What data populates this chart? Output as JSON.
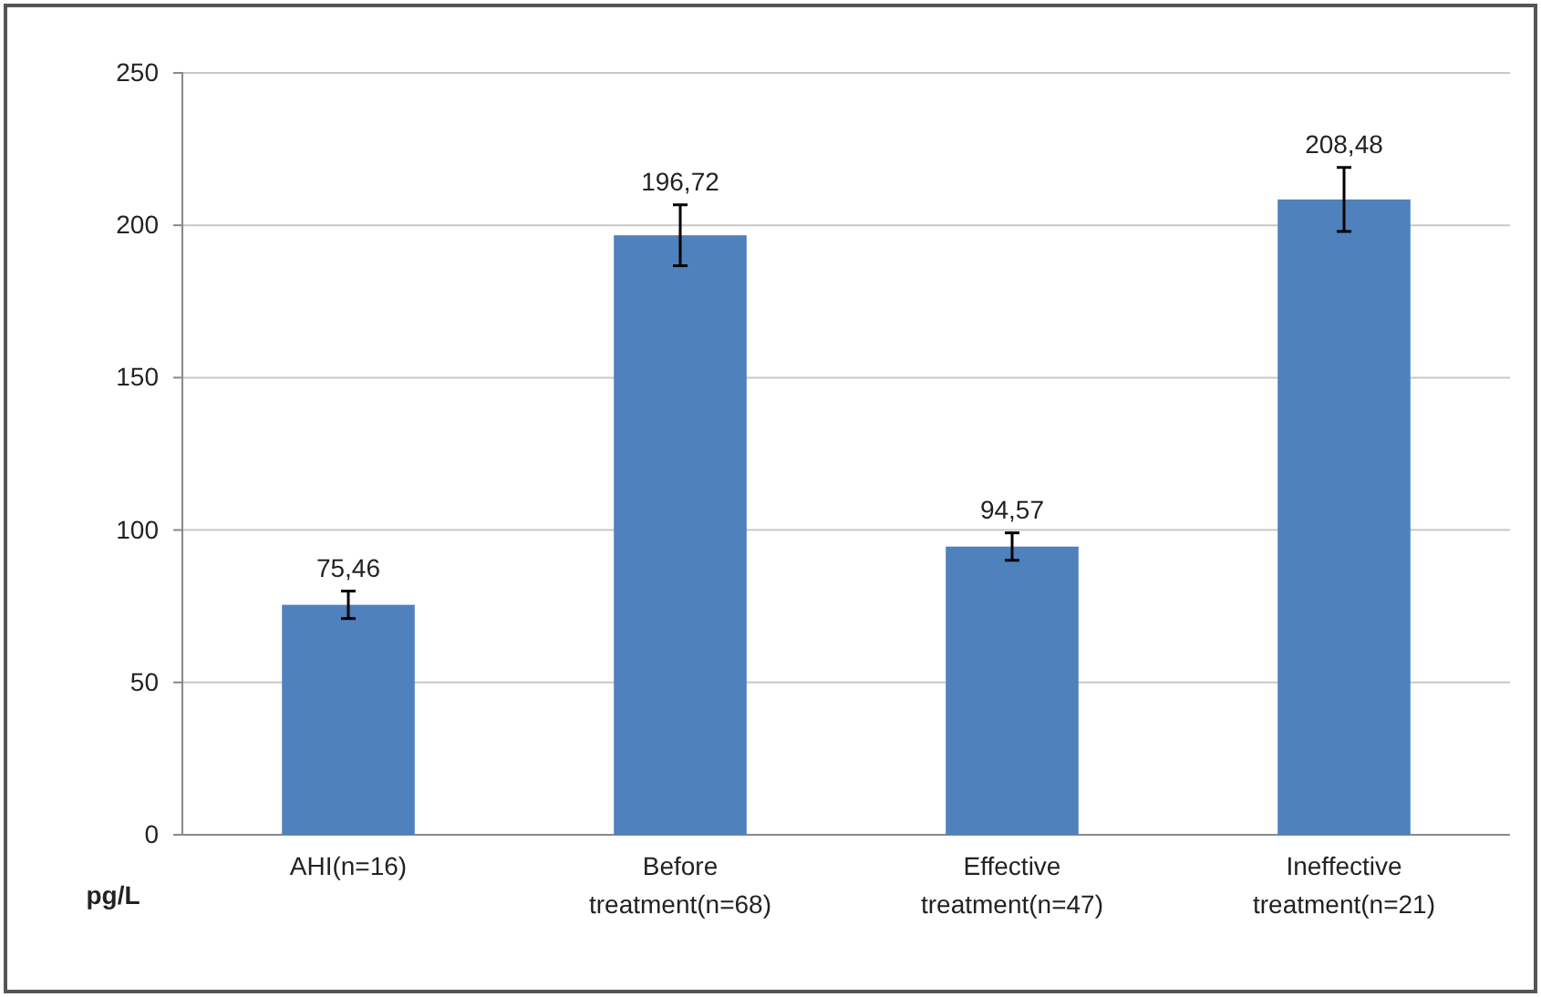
{
  "chart_data": {
    "type": "bar",
    "ylabel": "pg/L",
    "categories": [
      "AHI(n=16)",
      "Before treatment(n=68)",
      "Effective treatment(n=47)",
      "Ineffective treatment(n=21)"
    ],
    "values": [
      75.46,
      196.72,
      94.57,
      208.48
    ],
    "value_labels": [
      "75,46",
      "196,72",
      "94,57",
      "208,48"
    ],
    "errors": [
      4.5,
      10,
      4.5,
      10.5
    ],
    "color": "#4f81bd",
    "ylim": [
      0,
      250
    ],
    "yticks": [
      0,
      50,
      100,
      150,
      200,
      250
    ],
    "grid": "y"
  }
}
